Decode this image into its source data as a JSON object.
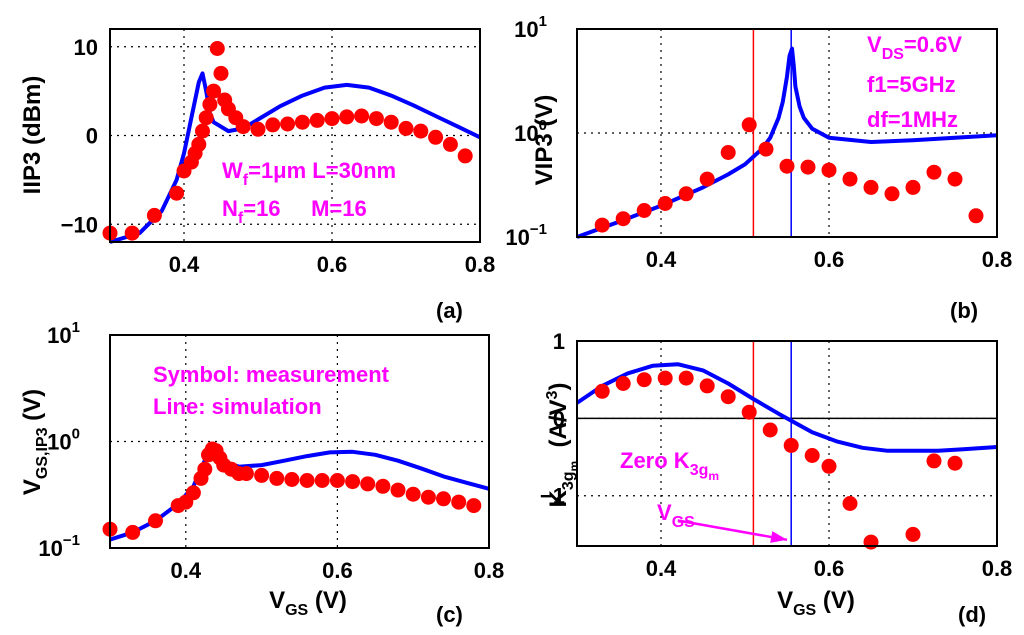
{
  "colors": {
    "measurement": "#ff0000",
    "simulation": "#0000ff",
    "annotation": "#ff00ff",
    "vline_red": "#ff0000",
    "vline_blue": "#0000ff",
    "grid": "#000000"
  },
  "chart_data": [
    {
      "panel": "(a)",
      "type": "line+scatter",
      "ylabel": "IIP3 (dBm)",
      "xlabel": "",
      "xlim": [
        0.3,
        0.8
      ],
      "ylim": [
        -12,
        12
      ],
      "yscale": "linear",
      "xticks": [
        "0.4",
        "0.6",
        "0.8"
      ],
      "xtick_values": [
        0.4,
        0.6,
        0.8
      ],
      "yticks": [
        "10",
        "0",
        "−10"
      ],
      "ytick_values": [
        10,
        0,
        -10
      ],
      "grid": true,
      "annotations": [
        {
          "base": "W",
          "sub": "f",
          "rest": "=1μm L=30nm"
        },
        {
          "base": "N",
          "sub": "f",
          "rest": "=16     M=16"
        }
      ],
      "measurement": {
        "x": [
          0.3,
          0.33,
          0.36,
          0.39,
          0.4,
          0.41,
          0.415,
          0.42,
          0.425,
          0.43,
          0.435,
          0.44,
          0.445,
          0.45,
          0.455,
          0.46,
          0.47,
          0.48,
          0.5,
          0.52,
          0.54,
          0.56,
          0.58,
          0.6,
          0.62,
          0.64,
          0.66,
          0.68,
          0.7,
          0.72,
          0.74,
          0.76,
          0.78
        ],
        "y": [
          -11,
          -11,
          -9,
          -6.5,
          -4,
          -3,
          -2,
          -1,
          0.5,
          2,
          3.5,
          5,
          9.8,
          7,
          4,
          3,
          2,
          1,
          0.7,
          1.2,
          1.3,
          1.5,
          1.7,
          1.9,
          2.1,
          2.2,
          1.9,
          1.5,
          0.8,
          0.5,
          -0.2,
          -1.0,
          -2.3
        ]
      },
      "simulation": {
        "x": [
          0.3,
          0.34,
          0.37,
          0.39,
          0.4,
          0.41,
          0.42,
          0.425,
          0.43,
          0.435,
          0.44,
          0.46,
          0.48,
          0.5,
          0.53,
          0.56,
          0.59,
          0.62,
          0.65,
          0.68,
          0.71,
          0.74,
          0.77,
          0.8
        ],
        "y": [
          -12,
          -11,
          -8.5,
          -5,
          -2,
          2,
          6,
          7,
          5,
          2.5,
          1.5,
          0.5,
          0.8,
          1.8,
          3.3,
          4.5,
          5.4,
          5.7,
          5.4,
          4.5,
          3.4,
          2.2,
          1.0,
          -0.2
        ]
      }
    },
    {
      "panel": "(b)",
      "type": "line+scatter",
      "ylabel": "VIP3 (V)",
      "xlabel": "",
      "xlim": [
        0.3,
        0.8
      ],
      "ylim": [
        0.1,
        10
      ],
      "yscale": "log",
      "xticks": [
        "0.4",
        "0.6",
        "0.8"
      ],
      "xtick_values": [
        0.4,
        0.6,
        0.8
      ],
      "ytick_values": [
        0.1,
        1,
        10
      ],
      "ytick_labels": [
        {
          "base": "10",
          "exp": "−1"
        },
        {
          "base": "10",
          "exp": "0"
        },
        {
          "base": "10",
          "exp": "1"
        }
      ],
      "grid": true,
      "vlines": [
        0.51,
        0.555
      ],
      "annotations": [
        {
          "base": "V",
          "sub": "DS",
          "rest": "=0.6V"
        },
        {
          "base": "f1=5GHz",
          "sub": "",
          "rest": ""
        },
        {
          "base": "df=1MHz",
          "sub": "",
          "rest": ""
        }
      ],
      "measurement": {
        "x": [
          0.33,
          0.355,
          0.38,
          0.405,
          0.43,
          0.455,
          0.48,
          0.505,
          0.525,
          0.55,
          0.575,
          0.6,
          0.625,
          0.65,
          0.675,
          0.7,
          0.725,
          0.75,
          0.775
        ],
        "y": [
          0.13,
          0.15,
          0.18,
          0.21,
          0.26,
          0.36,
          0.65,
          1.2,
          0.7,
          0.48,
          0.47,
          0.44,
          0.36,
          0.3,
          0.26,
          0.3,
          0.42,
          0.36,
          0.16
        ]
      },
      "simulation": {
        "x": [
          0.3,
          0.35,
          0.4,
          0.45,
          0.48,
          0.5,
          0.52,
          0.53,
          0.54,
          0.545,
          0.55,
          0.553,
          0.556,
          0.558,
          0.56,
          0.565,
          0.57,
          0.58,
          0.6,
          0.65,
          0.7,
          0.75,
          0.8
        ],
        "y": [
          0.1,
          0.14,
          0.2,
          0.3,
          0.4,
          0.5,
          0.7,
          0.9,
          1.4,
          2.0,
          3.5,
          5.5,
          6.5,
          4.5,
          2.8,
          1.8,
          1.4,
          1.1,
          0.9,
          0.82,
          0.85,
          0.9,
          0.95
        ]
      }
    },
    {
      "panel": "(c)",
      "type": "line+scatter",
      "ylabel_base": "V",
      "ylabel_sub": "GS,IP3",
      "ylabel_rest": " (V)",
      "xlabel_base": "V",
      "xlabel_sub": "GS",
      "xlabel_rest": " (V)",
      "xlim": [
        0.3,
        0.8
      ],
      "ylim": [
        0.1,
        10
      ],
      "yscale": "log",
      "xticks": [
        "0.4",
        "0.6",
        "0.8"
      ],
      "xtick_values": [
        0.4,
        0.6,
        0.8
      ],
      "ytick_values": [
        0.1,
        1,
        10
      ],
      "ytick_labels": [
        {
          "base": "10",
          "exp": "−1"
        },
        {
          "base": "10",
          "exp": "0"
        },
        {
          "base": "10",
          "exp": "1"
        }
      ],
      "grid": true,
      "annotations": [
        {
          "base": "Symbol: measurement",
          "sub": "",
          "rest": ""
        },
        {
          "base": "Line: simulation",
          "sub": "",
          "rest": ""
        }
      ],
      "measurement": {
        "x": [
          0.3,
          0.33,
          0.36,
          0.39,
          0.4,
          0.41,
          0.42,
          0.425,
          0.43,
          0.435,
          0.44,
          0.445,
          0.45,
          0.46,
          0.47,
          0.48,
          0.5,
          0.52,
          0.54,
          0.56,
          0.58,
          0.6,
          0.62,
          0.64,
          0.66,
          0.68,
          0.7,
          0.72,
          0.74,
          0.76,
          0.78
        ],
        "y": [
          0.15,
          0.14,
          0.18,
          0.25,
          0.27,
          0.33,
          0.45,
          0.55,
          0.75,
          0.85,
          0.82,
          0.7,
          0.6,
          0.55,
          0.5,
          0.5,
          0.48,
          0.45,
          0.44,
          0.43,
          0.43,
          0.43,
          0.42,
          0.4,
          0.38,
          0.35,
          0.32,
          0.3,
          0.29,
          0.27,
          0.25
        ]
      },
      "simulation": {
        "x": [
          0.3,
          0.33,
          0.36,
          0.39,
          0.41,
          0.42,
          0.43,
          0.435,
          0.44,
          0.45,
          0.47,
          0.5,
          0.53,
          0.56,
          0.59,
          0.62,
          0.65,
          0.68,
          0.71,
          0.74,
          0.77,
          0.8
        ],
        "y": [
          0.12,
          0.14,
          0.18,
          0.26,
          0.38,
          0.55,
          0.8,
          0.93,
          0.8,
          0.65,
          0.58,
          0.6,
          0.66,
          0.73,
          0.79,
          0.8,
          0.75,
          0.66,
          0.56,
          0.47,
          0.41,
          0.36
        ]
      }
    },
    {
      "panel": "(d)",
      "type": "line+scatter",
      "ylabel_base": "K",
      "ylabel_sub": "3g",
      "ylabel_subsub": "m",
      "ylabel_rest": "  (A/V",
      "ylabel_sup": "3",
      "ylabel_end": ")",
      "xlabel_base": "V",
      "xlabel_sub": "GS",
      "xlabel_rest": " (V)",
      "xlim": [
        0.3,
        0.8
      ],
      "ylim": [
        -1.65,
        1.0
      ],
      "yscale": "linear",
      "xticks": [
        "0.4",
        "0.6",
        "0.8"
      ],
      "xtick_values": [
        0.4,
        0.6,
        0.8
      ],
      "yticks": [
        "1",
        "0",
        "−1"
      ],
      "ytick_values": [
        1,
        0,
        -1
      ],
      "grid": true,
      "hline": 0,
      "vlines": [
        0.51,
        0.555
      ],
      "annotations": [
        {
          "base": "Zero K",
          "sub": "3g",
          "subsub": "m"
        },
        {
          "base": "V",
          "sub": "GS"
        }
      ],
      "arrow": {
        "from": [
          0.42,
          -1.32
        ],
        "to": [
          0.55,
          -1.57
        ]
      },
      "measurement": {
        "x": [
          0.33,
          0.355,
          0.38,
          0.405,
          0.43,
          0.455,
          0.48,
          0.505,
          0.53,
          0.555,
          0.58,
          0.6,
          0.625,
          0.65,
          0.7,
          0.725,
          0.75
        ],
        "y": [
          0.35,
          0.45,
          0.5,
          0.52,
          0.52,
          0.42,
          0.28,
          0.08,
          -0.15,
          -0.35,
          -0.48,
          -0.62,
          -1.1,
          -1.6,
          -1.5,
          -0.55,
          -0.58
        ]
      },
      "simulation": {
        "x": [
          0.3,
          0.33,
          0.36,
          0.39,
          0.42,
          0.45,
          0.48,
          0.51,
          0.54,
          0.56,
          0.58,
          0.61,
          0.64,
          0.67,
          0.7,
          0.73,
          0.76,
          0.8
        ],
        "y": [
          0.2,
          0.42,
          0.58,
          0.68,
          0.7,
          0.62,
          0.45,
          0.25,
          0.06,
          -0.06,
          -0.18,
          -0.3,
          -0.38,
          -0.42,
          -0.42,
          -0.42,
          -0.4,
          -0.37
        ]
      }
    }
  ]
}
